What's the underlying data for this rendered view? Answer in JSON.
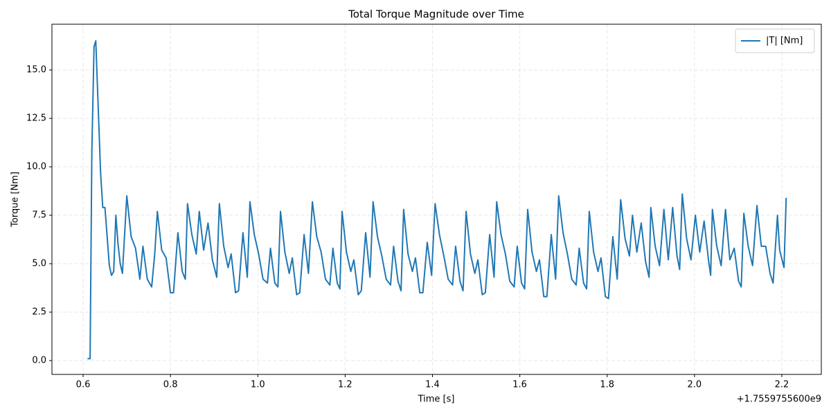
{
  "chart_data": {
    "type": "line",
    "title": "Total Torque Magnitude over Time",
    "x_label": "Time [s]",
    "y_label": "Torque [Nm]",
    "offset_label": "+1.7559755600e9",
    "x": [
      0.61,
      0.616,
      0.62,
      0.625,
      0.629,
      0.64,
      0.645,
      0.65,
      0.66,
      0.665,
      0.67,
      0.675,
      0.68,
      0.685,
      0.69,
      0.7,
      0.71,
      0.72,
      0.73,
      0.737,
      0.747,
      0.757,
      0.764,
      0.77,
      0.78,
      0.79,
      0.8,
      0.807,
      0.817,
      0.827,
      0.834,
      0.839,
      0.849,
      0.859,
      0.866,
      0.876,
      0.886,
      0.896,
      0.906,
      0.912,
      0.922,
      0.932,
      0.939,
      0.949,
      0.956,
      0.966,
      0.976,
      0.982,
      0.992,
      1.002,
      1.012,
      1.022,
      1.029,
      1.039,
      1.046,
      1.052,
      1.062,
      1.072,
      1.079,
      1.089,
      1.096,
      1.106,
      1.116,
      1.125,
      1.135,
      1.145,
      1.155,
      1.165,
      1.172,
      1.182,
      1.188,
      1.193,
      1.203,
      1.213,
      1.22,
      1.23,
      1.237,
      1.247,
      1.257,
      1.264,
      1.274,
      1.284,
      1.294,
      1.304,
      1.311,
      1.321,
      1.328,
      1.334,
      1.344,
      1.354,
      1.361,
      1.371,
      1.378,
      1.388,
      1.398,
      1.406,
      1.416,
      1.426,
      1.436,
      1.446,
      1.453,
      1.463,
      1.47,
      1.477,
      1.487,
      1.497,
      1.504,
      1.514,
      1.521,
      1.531,
      1.541,
      1.547,
      1.557,
      1.567,
      1.577,
      1.587,
      1.594,
      1.604,
      1.611,
      1.618,
      1.628,
      1.638,
      1.645,
      1.655,
      1.662,
      1.672,
      1.682,
      1.689,
      1.699,
      1.709,
      1.719,
      1.729,
      1.736,
      1.746,
      1.753,
      1.759,
      1.769,
      1.779,
      1.786,
      1.796,
      1.803,
      1.813,
      1.823,
      1.831,
      1.841,
      1.851,
      1.858,
      1.868,
      1.878,
      1.888,
      1.896,
      1.9,
      1.91,
      1.92,
      1.93,
      1.94,
      1.95,
      1.96,
      1.966,
      1.972,
      1.982,
      1.992,
      2.002,
      2.012,
      2.022,
      2.032,
      2.037,
      2.041,
      2.051,
      2.061,
      2.071,
      2.081,
      2.091,
      2.101,
      2.107,
      2.113,
      2.123,
      2.133,
      2.143,
      2.153,
      2.163,
      2.173,
      2.18,
      2.19,
      2.195,
      2.205,
      2.21
    ],
    "series": [
      {
        "name": "|T| [Nm]",
        "color": "#1f77b4",
        "values": [
          0.1,
          0.1,
          10.8,
          16.2,
          16.5,
          9.7,
          7.9,
          7.9,
          4.9,
          4.4,
          4.6,
          7.5,
          6.0,
          5.0,
          4.5,
          8.5,
          6.4,
          5.8,
          4.2,
          5.9,
          4.2,
          3.8,
          5.5,
          7.7,
          5.7,
          5.3,
          3.5,
          3.5,
          6.6,
          4.6,
          4.2,
          8.1,
          6.5,
          5.5,
          7.7,
          5.7,
          7.1,
          5.2,
          4.3,
          8.1,
          5.9,
          4.8,
          5.5,
          3.5,
          3.6,
          6.6,
          4.3,
          8.2,
          6.5,
          5.5,
          4.2,
          4.0,
          5.8,
          4.0,
          3.8,
          7.7,
          5.6,
          4.5,
          5.3,
          3.4,
          3.5,
          6.5,
          4.5,
          8.2,
          6.4,
          5.6,
          4.2,
          3.9,
          5.8,
          4.0,
          3.7,
          7.7,
          5.6,
          4.6,
          5.2,
          3.4,
          3.6,
          6.6,
          4.3,
          8.2,
          6.4,
          5.4,
          4.2,
          3.9,
          5.9,
          4.1,
          3.6,
          7.8,
          5.5,
          4.6,
          5.3,
          3.5,
          3.5,
          6.1,
          4.4,
          8.1,
          6.5,
          5.4,
          4.2,
          3.9,
          5.9,
          4.1,
          3.6,
          7.7,
          5.5,
          4.5,
          5.2,
          3.4,
          3.5,
          6.5,
          4.3,
          8.2,
          6.5,
          5.5,
          4.1,
          3.8,
          5.9,
          4.0,
          3.7,
          7.8,
          5.6,
          4.6,
          5.2,
          3.3,
          3.3,
          6.5,
          4.2,
          8.5,
          6.6,
          5.5,
          4.2,
          3.9,
          5.8,
          4.0,
          3.7,
          7.7,
          5.6,
          4.6,
          5.3,
          3.3,
          3.2,
          6.4,
          4.2,
          8.3,
          6.3,
          5.4,
          7.5,
          5.6,
          7.1,
          5.1,
          4.3,
          7.9,
          5.9,
          4.9,
          7.8,
          5.2,
          7.9,
          5.4,
          4.7,
          8.6,
          6.3,
          5.2,
          7.5,
          5.6,
          7.2,
          5.2,
          4.4,
          7.8,
          5.9,
          4.9,
          7.8,
          5.2,
          5.8,
          4.1,
          3.8,
          7.6,
          5.9,
          4.9,
          8.0,
          5.9,
          5.9,
          4.5,
          4.0,
          7.5,
          5.7,
          4.8,
          8.4
        ]
      }
    ],
    "xlim": [
      0.5286,
      2.2904
    ],
    "ylim": [
      -0.714,
      17.36
    ],
    "xticks": [
      0.6,
      0.8,
      {
        "value": 1.0,
        "label": "1.0"
      },
      1.2,
      1.4,
      1.6,
      1.8,
      {
        "value": 2.0,
        "label": "2.0"
      },
      2.2
    ],
    "yticks": [
      {
        "value": 0,
        "label": "0.0"
      },
      2.5,
      {
        "value": 5,
        "label": "5.0"
      },
      7.5,
      {
        "value": 10,
        "label": "10.0"
      },
      12.5,
      {
        "value": 15,
        "label": "15.0"
      }
    ],
    "grid": true,
    "legend": "upper right"
  }
}
